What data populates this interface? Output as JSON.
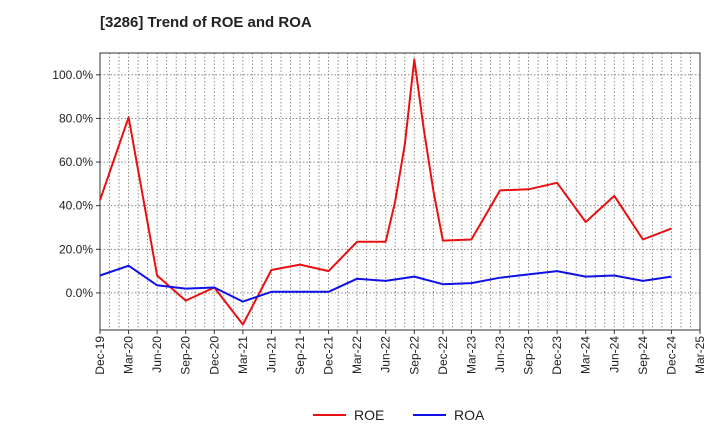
{
  "chart_data": {
    "type": "line",
    "title": "[3286]  Trend of ROE and ROA",
    "xlabel": "",
    "ylabel": "",
    "x_ticks": [
      "Dec-19",
      "Mar-20",
      "Jun-20",
      "Sep-20",
      "Dec-20",
      "Mar-21",
      "Jun-21",
      "Sep-21",
      "Dec-21",
      "Mar-22",
      "Jun-22",
      "Sep-22",
      "Dec-22",
      "Mar-23",
      "Jun-23",
      "Sep-23",
      "Dec-23",
      "Mar-24",
      "Jun-24",
      "Sep-24",
      "Dec-24",
      "Mar-25"
    ],
    "y_ticks": [
      0,
      20,
      40,
      60,
      80,
      100
    ],
    "y_tick_labels": [
      "0.0%",
      "20.0%",
      "40.0%",
      "60.0%",
      "80.0%",
      "100.0%"
    ],
    "ylim": [
      -17,
      110
    ],
    "grid": true,
    "legend_position": "bottom-center",
    "series": [
      {
        "name": "ROE",
        "color": "#e81010",
        "points": [
          [
            "Dec-19",
            42.5
          ],
          [
            "Mar-20",
            80.5
          ],
          [
            "Jun-20",
            8.0
          ],
          [
            "Sep-20",
            -3.5
          ],
          [
            "Dec-20",
            2.5
          ],
          [
            "Mar-21",
            -14.5
          ],
          [
            "Jun-21",
            10.5
          ],
          [
            "Sep-21",
            13.0
          ],
          [
            "Dec-21",
            10.0
          ],
          [
            "Mar-22",
            23.5
          ],
          [
            "Jun-22",
            23.5
          ],
          [
            "Jul-22",
            42.0
          ],
          [
            "Aug-22",
            68.0
          ],
          [
            "Sep-22",
            107.0
          ],
          [
            "Oct-22",
            75.0
          ],
          [
            "Nov-22",
            47.0
          ],
          [
            "Dec-22",
            24.0
          ],
          [
            "Mar-23",
            24.5
          ],
          [
            "Jun-23",
            47.0
          ],
          [
            "Sep-23",
            47.5
          ],
          [
            "Dec-23",
            50.5
          ],
          [
            "Mar-24",
            32.5
          ],
          [
            "Jun-24",
            44.5
          ],
          [
            "Sep-24",
            24.5
          ],
          [
            "Dec-24",
            29.5
          ]
        ]
      },
      {
        "name": "ROA",
        "color": "#1010e8",
        "points": [
          [
            "Dec-19",
            8.0
          ],
          [
            "Mar-20",
            12.5
          ],
          [
            "Jun-20",
            3.5
          ],
          [
            "Sep-20",
            2.0
          ],
          [
            "Dec-20",
            2.5
          ],
          [
            "Mar-21",
            -4.0
          ],
          [
            "Jun-21",
            0.5
          ],
          [
            "Sep-21",
            0.5
          ],
          [
            "Dec-21",
            0.5
          ],
          [
            "Mar-22",
            6.5
          ],
          [
            "Jun-22",
            5.5
          ],
          [
            "Sep-22",
            7.5
          ],
          [
            "Dec-22",
            4.0
          ],
          [
            "Mar-23",
            4.5
          ],
          [
            "Jun-23",
            7.0
          ],
          [
            "Sep-23",
            8.5
          ],
          [
            "Dec-23",
            10.0
          ],
          [
            "Mar-24",
            7.5
          ],
          [
            "Jun-24",
            8.0
          ],
          [
            "Sep-24",
            5.5
          ],
          [
            "Dec-24",
            7.5
          ]
        ]
      }
    ]
  }
}
